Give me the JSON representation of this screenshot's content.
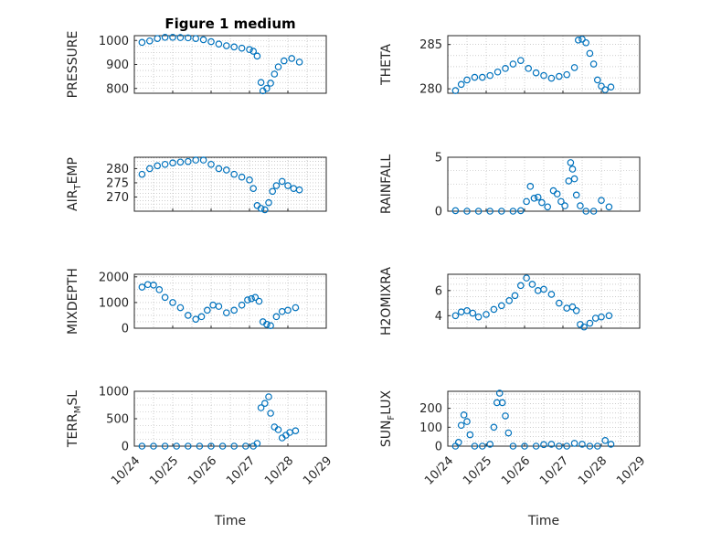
{
  "figure": {
    "title": "Figure 1 medium",
    "xlabel": "Time",
    "xticklabels": [
      "10/24",
      "10/25",
      "10/26",
      "10/27",
      "10/28",
      "10/29"
    ],
    "marker_color": "#0072BD"
  },
  "chart_data": [
    {
      "type": "scatter",
      "name_label": "PRESSURE",
      "ylabel": "PRESSURE",
      "ylim": [
        780,
        1020
      ],
      "yticks": [
        800,
        900,
        1000
      ],
      "xlim": [
        0,
        5
      ],
      "grid": true,
      "x": [
        0.2,
        0.4,
        0.6,
        0.8,
        1.0,
        1.2,
        1.4,
        1.6,
        1.8,
        2.0,
        2.2,
        2.4,
        2.6,
        2.8,
        3.0,
        3.1,
        3.2,
        3.3,
        3.35,
        3.45,
        3.55,
        3.65,
        3.75,
        3.9,
        4.1,
        4.3
      ],
      "y": [
        992,
        998,
        1008,
        1013,
        1013,
        1012,
        1011,
        1008,
        1003,
        995,
        985,
        978,
        973,
        968,
        962,
        955,
        935,
        825,
        790,
        800,
        822,
        860,
        890,
        915,
        925,
        910
      ]
    },
    {
      "type": "scatter",
      "name_label": "THETA",
      "ylabel": "THETA",
      "ylim": [
        279.5,
        286
      ],
      "yticks": [
        280,
        285
      ],
      "xlim": [
        0,
        5
      ],
      "grid": true,
      "x": [
        0.2,
        0.35,
        0.5,
        0.7,
        0.9,
        1.1,
        1.3,
        1.5,
        1.7,
        1.9,
        2.1,
        2.3,
        2.5,
        2.7,
        2.9,
        3.1,
        3.3,
        3.4,
        3.5,
        3.6,
        3.7,
        3.8,
        3.9,
        4.0,
        4.1,
        4.25
      ],
      "y": [
        279.8,
        280.5,
        281.0,
        281.3,
        281.3,
        281.5,
        281.9,
        282.3,
        282.8,
        283.2,
        282.3,
        281.8,
        281.5,
        281.2,
        281.4,
        281.6,
        282.4,
        285.5,
        285.6,
        285.2,
        284.0,
        282.8,
        281.0,
        280.3,
        279.9,
        280.2
      ]
    },
    {
      "type": "scatter",
      "name_label": "AIR_TEMP",
      "ylabel": "AIR",
      "ylabel_sub": "T",
      "ylabel_rest": "EMP",
      "ylim": [
        265,
        284
      ],
      "yticks": [
        270,
        275,
        280
      ],
      "xlim": [
        0,
        5
      ],
      "grid": true,
      "x": [
        0.2,
        0.4,
        0.6,
        0.8,
        1.0,
        1.2,
        1.4,
        1.6,
        1.8,
        2.0,
        2.2,
        2.4,
        2.6,
        2.8,
        3.0,
        3.1,
        3.2,
        3.3,
        3.4,
        3.5,
        3.6,
        3.7,
        3.85,
        4.0,
        4.15,
        4.3
      ],
      "y": [
        278,
        280,
        281,
        281.5,
        282,
        282.3,
        282.5,
        283,
        283,
        281.5,
        280,
        279.5,
        278,
        277,
        276,
        273,
        267,
        266,
        265.5,
        268,
        272,
        274,
        275.5,
        274,
        273,
        272.5
      ]
    },
    {
      "type": "scatter",
      "name_label": "RAINFALL",
      "ylabel": "RAINFALL",
      "ylim": [
        0,
        5
      ],
      "yticks": [
        0,
        5
      ],
      "xlim": [
        0,
        5
      ],
      "grid": true,
      "x": [
        0.2,
        0.5,
        0.8,
        1.1,
        1.4,
        1.7,
        1.9,
        2.05,
        2.15,
        2.25,
        2.35,
        2.45,
        2.6,
        2.75,
        2.85,
        2.95,
        3.05,
        3.15,
        3.2,
        3.25,
        3.3,
        3.35,
        3.45,
        3.6,
        3.8,
        4.0,
        4.2
      ],
      "y": [
        0.05,
        0,
        0,
        0,
        0,
        0,
        0.05,
        0.9,
        2.3,
        1.2,
        1.3,
        0.8,
        0.4,
        1.9,
        1.6,
        0.9,
        0.5,
        2.8,
        4.5,
        3.9,
        3.0,
        1.5,
        0.5,
        0.0,
        0.0,
        1.0,
        0.4
      ]
    },
    {
      "type": "scatter",
      "name_label": "MIXDEPTH",
      "ylabel": "MIXDEPTH",
      "ylim": [
        0,
        2100
      ],
      "yticks": [
        0,
        1000,
        2000
      ],
      "xlim": [
        0,
        5
      ],
      "grid": true,
      "x": [
        0.2,
        0.35,
        0.5,
        0.65,
        0.8,
        1.0,
        1.2,
        1.4,
        1.6,
        1.75,
        1.9,
        2.05,
        2.2,
        2.4,
        2.6,
        2.8,
        2.95,
        3.05,
        3.15,
        3.25,
        3.35,
        3.45,
        3.55,
        3.7,
        3.85,
        4.0,
        4.2
      ],
      "y": [
        1600,
        1700,
        1680,
        1500,
        1200,
        1000,
        800,
        500,
        350,
        450,
        700,
        900,
        850,
        600,
        700,
        900,
        1100,
        1150,
        1200,
        1050,
        250,
        150,
        100,
        450,
        650,
        700,
        800
      ]
    },
    {
      "type": "scatter",
      "name_label": "H2OMIXRA",
      "ylabel": "H2OMIXRA",
      "ylim": [
        3,
        7.3
      ],
      "yticks": [
        4,
        6
      ],
      "xlim": [
        0,
        5
      ],
      "grid": true,
      "x": [
        0.2,
        0.35,
        0.5,
        0.65,
        0.8,
        1.0,
        1.2,
        1.4,
        1.6,
        1.75,
        1.9,
        2.05,
        2.2,
        2.35,
        2.5,
        2.7,
        2.9,
        3.1,
        3.25,
        3.35,
        3.45,
        3.55,
        3.7,
        3.85,
        4.0,
        4.2
      ],
      "y": [
        4.0,
        4.3,
        4.4,
        4.2,
        3.9,
        4.1,
        4.5,
        4.8,
        5.2,
        5.6,
        6.4,
        7.0,
        6.5,
        6.0,
        6.1,
        5.7,
        5.0,
        4.6,
        4.7,
        4.4,
        3.3,
        3.1,
        3.4,
        3.8,
        3.9,
        4.0
      ]
    },
    {
      "type": "scatter",
      "name_label": "TERR_MSL",
      "ylabel": "TERR",
      "ylabel_sub": "M",
      "ylabel_rest": "SL",
      "ylim": [
        0,
        1000
      ],
      "yticks": [
        0,
        500,
        1000
      ],
      "xlim": [
        0,
        5
      ],
      "grid": true,
      "x": [
        0.2,
        0.5,
        0.8,
        1.1,
        1.4,
        1.7,
        2.0,
        2.3,
        2.6,
        2.9,
        3.1,
        3.2,
        3.3,
        3.4,
        3.5,
        3.55,
        3.65,
        3.75,
        3.85,
        3.95,
        4.05,
        4.2
      ],
      "y": [
        0,
        0,
        0,
        0,
        0,
        0,
        0,
        0,
        0,
        0,
        0,
        50,
        700,
        780,
        900,
        600,
        350,
        300,
        150,
        200,
        250,
        280
      ]
    },
    {
      "type": "scatter",
      "name_label": "SUN_FLUX",
      "ylabel": "SUN",
      "ylabel_sub": "F",
      "ylabel_rest": "LUX",
      "ylim": [
        0,
        290
      ],
      "yticks": [
        0,
        100,
        200
      ],
      "xlim": [
        0,
        5
      ],
      "grid": true,
      "x": [
        0.2,
        0.28,
        0.35,
        0.42,
        0.5,
        0.58,
        0.7,
        0.9,
        1.1,
        1.2,
        1.28,
        1.35,
        1.42,
        1.5,
        1.58,
        1.7,
        2.0,
        2.3,
        2.5,
        2.7,
        2.9,
        3.1,
        3.3,
        3.5,
        3.7,
        3.9,
        4.1,
        4.25
      ],
      "y": [
        0,
        20,
        110,
        165,
        130,
        60,
        0,
        0,
        10,
        100,
        230,
        280,
        230,
        160,
        70,
        0,
        0,
        0,
        8,
        10,
        0,
        0,
        15,
        10,
        0,
        0,
        30,
        10
      ]
    }
  ]
}
